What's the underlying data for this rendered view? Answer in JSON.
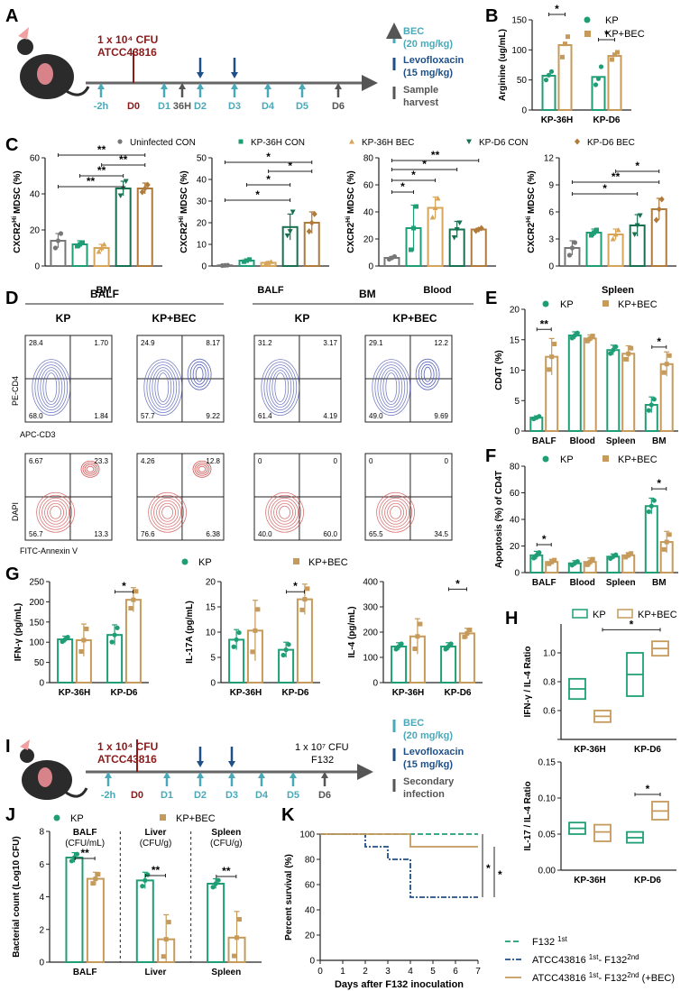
{
  "colors": {
    "kp": "#1f9e76",
    "bec": "#c59a5a",
    "con": "#777777",
    "kp36con": "#1f9e76",
    "kp36bec": "#d7a55a",
    "d6con": "#17704f",
    "d6bec": "#b07a3a",
    "arrowLight": "#4aa9b8",
    "arrowDark": "#1e4f87",
    "arrowGray": "#555555",
    "red": "#8b1a1a",
    "flowBlue": "#5560b8",
    "flowRed": "#d05050"
  },
  "panels": {
    "A": {
      "letter": "A",
      "cfu_line1": "1 x 10⁴ CFU",
      "cfu_line2": "ATCC43816",
      "timeline": [
        "-2h",
        "D0",
        "D1",
        "36H",
        "D2",
        "D3",
        "D4",
        "D5",
        "D6"
      ],
      "legend": {
        "bec": "BEC",
        "bec_dose": "(20 mg/kg)",
        "levo": "Levofloxacin",
        "levo_dose": "(15 mg/kg)",
        "sample": "Sample",
        "sample2": "harvest"
      }
    },
    "B": {
      "letter": "B",
      "legend_kp": "KP",
      "legend_bec": "KP+BEC",
      "sig": [
        "*",
        "*"
      ]
    },
    "C": {
      "letter": "C",
      "legend": [
        "Uninfected CON",
        "KP-36H CON",
        "KP-36H BEC",
        "KP-D6 CON",
        "KP-D6 BEC"
      ],
      "ylabel": "CXCR2Hi MDSC (%)",
      "ylabel_main": "CXCR2",
      "ylabel_sup": "Hi",
      "ylabel_tail": " MDSC (%)",
      "sig": "*",
      "sig2": "**"
    },
    "D": {
      "letter": "D",
      "balf": "BALF",
      "bm": "BM",
      "kp": "KP",
      "kpbec": "KP+BEC",
      "ylab_top": "PE-CD4",
      "xlab_top": "APC-CD3",
      "ylab_bot": "DAPI",
      "xlab_bot": "FITC-Annexin V",
      "quads_top": [
        [
          "28.4",
          "1.70",
          "68.0",
          "1.84"
        ],
        [
          "24.9",
          "8.17",
          "57.7",
          "9.22"
        ],
        [
          "31.2",
          "3.17",
          "61.4",
          "4.19"
        ],
        [
          "29.1",
          "12.2",
          "49.0",
          "9.69"
        ]
      ],
      "quads_bot": [
        [
          "6.67",
          "23.3",
          "56.7",
          "13.3"
        ],
        [
          "4.26",
          "12.8",
          "76.6",
          "6.38"
        ],
        [
          "0",
          "0",
          "40.0",
          "60.0"
        ],
        [
          "0",
          "0",
          "65.5",
          "34.5"
        ]
      ]
    },
    "E": {
      "letter": "E",
      "legend_kp": "KP",
      "legend_bec": "KP+BEC",
      "sig": [
        "**",
        "*"
      ]
    },
    "F": {
      "letter": "F",
      "legend_kp": "KP",
      "legend_bec": "KP+BEC",
      "sig": [
        "*",
        "*"
      ]
    },
    "G": {
      "letter": "G",
      "legend_kp": "KP",
      "legend_bec": "KP+BEC",
      "sig": "*"
    },
    "H": {
      "letter": "H",
      "legend_kp": "KP",
      "legend_bec": "KP+BEC",
      "sig": "*"
    },
    "I": {
      "letter": "I",
      "cfu_line1": "1 x 10⁴ CFU",
      "cfu_line2": "ATCC43816",
      "timeline": [
        "-2h",
        "D0",
        "D1",
        "D2",
        "D3",
        "D4",
        "D5",
        "D6"
      ],
      "second_cfu": "1 x 10⁷ CFU",
      "second_strain": "F132",
      "legend": {
        "bec": "BEC",
        "bec_dose": "(20 mg/kg)",
        "levo": "Levofloxacin",
        "levo_dose": "(15 mg/kg)",
        "sec": "Secondary",
        "sec2": "infection"
      }
    },
    "J": {
      "letter": "J",
      "legend_kp": "KP",
      "legend_bec": "KP+BEC",
      "sub": [
        [
          "BALF",
          "(CFU/mL)"
        ],
        [
          "Liver",
          "(CFU/g)"
        ],
        [
          "Spleen",
          "(CFU/g)"
        ]
      ],
      "sig": "**"
    },
    "K": {
      "letter": "K",
      "sig": "*",
      "legend": [
        {
          "name": "F132",
          "sup": "1st",
          "tail": ""
        },
        {
          "name": "ATCC43816",
          "sup": "1st",
          "tail": "- F132",
          "sup2": "2nd",
          "tail2": ""
        },
        {
          "name": "ATCC43816",
          "sup": "1st",
          "tail": "- F132",
          "sup2": "2nd",
          "tail2": " (+BEC)"
        }
      ]
    }
  },
  "chart_data": [
    {
      "id": "B",
      "type": "bar",
      "ylabel": "Arginine (ug/mL)",
      "categories": [
        "KP-36H",
        "KP-D6"
      ],
      "ylim": [
        0,
        150
      ],
      "yticks": [
        0,
        50,
        100,
        150
      ],
      "series": [
        {
          "name": "KP",
          "values": [
            57,
            55
          ],
          "points": [
            [
              50,
              58,
              64
            ],
            [
              42,
              52,
              72
            ]
          ]
        },
        {
          "name": "KP+BEC",
          "values": [
            108,
            90
          ],
          "points": [
            [
              88,
              110,
              122
            ],
            [
              84,
              92,
              96
            ]
          ]
        }
      ]
    },
    {
      "id": "C1",
      "type": "bar",
      "title": "BM",
      "ylabel": "CXCR2Hi MDSC (%)",
      "ylim": [
        0,
        60
      ],
      "yticks": [
        0,
        20,
        40,
        60
      ],
      "categories": [
        "Uninfected CON",
        "KP-36H CON",
        "KP-36H BEC",
        "KP-D6 CON",
        "KP-D6 BEC"
      ],
      "values": [
        14,
        12,
        10,
        43,
        43
      ],
      "errors": [
        4,
        2,
        2,
        4,
        3
      ],
      "points": [
        [
          10,
          14,
          18
        ],
        [
          11,
          12,
          13
        ],
        [
          8,
          10,
          12
        ],
        [
          39,
          43,
          47
        ],
        [
          41,
          43,
          45
        ]
      ]
    },
    {
      "id": "C2",
      "type": "bar",
      "title": "BALF",
      "ylabel": "CXCR2Hi MDSC (%)",
      "ylim": [
        0,
        50
      ],
      "yticks": [
        0,
        10,
        20,
        30,
        40,
        50
      ],
      "categories": [
        "Uninfected CON",
        "KP-36H CON",
        "KP-36H BEC",
        "KP-D6 CON",
        "KP-D6 BEC"
      ],
      "values": [
        0.3,
        2.5,
        1.5,
        18,
        20
      ],
      "errors": [
        0.2,
        0.8,
        0.6,
        6,
        5
      ],
      "points": [
        [
          0.2,
          0.3,
          0.4
        ],
        [
          2,
          2.5,
          3
        ],
        [
          1,
          1.5,
          2
        ],
        [
          14,
          16,
          25
        ],
        [
          16,
          20,
          24
        ]
      ]
    },
    {
      "id": "C3",
      "type": "bar",
      "title": "Blood",
      "ylabel": "CXCR2Hi MDSC (%)",
      "ylim": [
        0,
        80
      ],
      "yticks": [
        0,
        20,
        40,
        60,
        80
      ],
      "categories": [
        "Uninfected CON",
        "KP-36H CON",
        "KP-36H BEC",
        "KP-D6 CON",
        "KP-D6 BEC"
      ],
      "values": [
        6,
        28,
        43,
        27,
        27
      ],
      "errors": [
        1,
        17,
        8,
        6,
        1
      ],
      "points": [
        [
          5,
          6,
          7
        ],
        [
          12,
          28,
          44
        ],
        [
          36,
          43,
          50
        ],
        [
          21,
          27,
          32
        ],
        [
          26,
          27,
          28
        ]
      ]
    },
    {
      "id": "C4",
      "type": "bar",
      "title": "Spleen",
      "ylabel": "CXCR2Hi MDSC (%)",
      "ylim": [
        0,
        12
      ],
      "yticks": [
        0,
        3,
        6,
        9,
        12
      ],
      "categories": [
        "Uninfected CON",
        "KP-36H CON",
        "KP-36H BEC",
        "KP-D6 CON",
        "KP-D6 BEC"
      ],
      "values": [
        2,
        3.7,
        3.5,
        4.5,
        6.3
      ],
      "errors": [
        0.8,
        0.4,
        0.6,
        1.2,
        1.2
      ],
      "points": [
        [
          1.2,
          2,
          2.6
        ],
        [
          3.4,
          3.7,
          4
        ],
        [
          3,
          3.5,
          4
        ],
        [
          3.5,
          4.5,
          5.6
        ],
        [
          5.1,
          6.3,
          7.4
        ]
      ]
    },
    {
      "id": "E",
      "type": "bar",
      "ylabel": "CD4T (%)",
      "categories": [
        "BALF",
        "Blood",
        "Spleen",
        "BM"
      ],
      "ylim": [
        0,
        20
      ],
      "yticks": [
        0,
        5,
        10,
        15,
        20
      ],
      "series": [
        {
          "name": "KP",
          "values": [
            2.2,
            15.7,
            13.3,
            4.3
          ],
          "errors": [
            0.3,
            0.6,
            0.8,
            1.3
          ]
        },
        {
          "name": "KP+BEC",
          "values": [
            12.2,
            15.2,
            12.7,
            11
          ],
          "errors": [
            3,
            0.6,
            1.3,
            2
          ]
        }
      ]
    },
    {
      "id": "F",
      "type": "bar",
      "ylabel": "Apoptosis (%) of CD4T",
      "categories": [
        "BALF",
        "Blood",
        "Spleen",
        "BM"
      ],
      "ylim": [
        0,
        80
      ],
      "yticks": [
        0,
        20,
        40,
        60,
        80
      ],
      "series": [
        {
          "name": "KP",
          "values": [
            13,
            7,
            12,
            50
          ],
          "errors": [
            3,
            2,
            2,
            6
          ]
        },
        {
          "name": "KP+BEC",
          "values": [
            8,
            8,
            13,
            23
          ],
          "errors": [
            2,
            3,
            2,
            8
          ]
        }
      ]
    },
    {
      "id": "G1",
      "type": "bar",
      "ylabel": "IFN-γ (pg/mL)",
      "categories": [
        "KP-36H",
        "KP-D6"
      ],
      "ylim": [
        0,
        250
      ],
      "yticks": [
        0,
        50,
        100,
        150,
        200,
        250
      ],
      "series": [
        {
          "name": "KP",
          "values": [
            107,
            118
          ],
          "errors": [
            8,
            25
          ]
        },
        {
          "name": "KP+BEC",
          "values": [
            105,
            205
          ],
          "errors": [
            40,
            30
          ]
        }
      ]
    },
    {
      "id": "G2",
      "type": "bar",
      "ylabel": "IL-17A (pg/mL)",
      "categories": [
        "KP-36H",
        "KP-D6"
      ],
      "ylim": [
        0,
        20
      ],
      "yticks": [
        0,
        5,
        10,
        15,
        20
      ],
      "series": [
        {
          "name": "KP",
          "values": [
            8.5,
            6.5
          ],
          "errors": [
            2,
            1.5
          ]
        },
        {
          "name": "KP+BEC",
          "values": [
            10.3,
            16.5
          ],
          "errors": [
            6,
            3
          ]
        }
      ]
    },
    {
      "id": "G3",
      "type": "bar",
      "ylabel": "IL-4 (pg/mL)",
      "categories": [
        "KP-36H",
        "KP-D6"
      ],
      "ylim": [
        0,
        400
      ],
      "yticks": [
        0,
        100,
        200,
        300,
        400
      ],
      "series": [
        {
          "name": "KP",
          "values": [
            143,
            143
          ],
          "errors": [
            15,
            15
          ]
        },
        {
          "name": "KP+BEC",
          "values": [
            183,
            195
          ],
          "errors": [
            70,
            20
          ]
        }
      ]
    },
    {
      "id": "H1",
      "type": "box",
      "ylabel": "IFN-γ / IL-4 Ratio",
      "categories": [
        "KP-36H",
        "KP-D6"
      ],
      "ylim": [
        0.4,
        1.2
      ],
      "yticks": [
        0.4,
        0.6,
        0.8,
        1.0
      ],
      "ytick_labels": [
        "",
        "0.6",
        "0.8",
        "1.0"
      ],
      "series": [
        {
          "name": "KP",
          "boxes": [
            [
              0.68,
              0.75,
              0.82
            ],
            [
              0.7,
              0.85,
              1.0
            ]
          ]
        },
        {
          "name": "KP+BEC",
          "boxes": [
            [
              0.52,
              0.56,
              0.6
            ],
            [
              0.98,
              1.03,
              1.08
            ]
          ]
        }
      ]
    },
    {
      "id": "H2",
      "type": "box",
      "ylabel": "IL-17 / IL-4 Ratio",
      "categories": [
        "KP-36H",
        "KP-D6"
      ],
      "ylim": [
        0,
        0.15
      ],
      "yticks": [
        0,
        0.05,
        0.1,
        0.15
      ],
      "ytick_labels": [
        "0.00",
        "0.05",
        "0.10",
        "0.15"
      ],
      "series": [
        {
          "name": "KP",
          "boxes": [
            [
              0.05,
              0.058,
              0.066
            ],
            [
              0.038,
              0.045,
              0.053
            ]
          ]
        },
        {
          "name": "KP+BEC",
          "boxes": [
            [
              0.04,
              0.053,
              0.063
            ],
            [
              0.07,
              0.082,
              0.095
            ]
          ]
        }
      ]
    },
    {
      "id": "J",
      "type": "bar",
      "ylabel": "Bacterial count (Log10 CFU)",
      "categories": [
        "BALF",
        "Liver",
        "Spleen"
      ],
      "ylim": [
        0,
        8
      ],
      "yticks": [
        0,
        2,
        4,
        6,
        8
      ],
      "series": [
        {
          "name": "KP",
          "values": [
            6.4,
            5,
            4.8
          ],
          "errors": [
            0.3,
            0.5,
            0.3
          ]
        },
        {
          "name": "KP+BEC",
          "values": [
            5.1,
            1.4,
            1.5
          ],
          "errors": [
            0.4,
            1.5,
            1.6
          ]
        }
      ]
    },
    {
      "id": "K",
      "type": "line",
      "ylabel": "Percent survival (%)",
      "xlabel": "Days after F132 inoculation",
      "xlim": [
        0,
        7
      ],
      "ylim": [
        0,
        100
      ],
      "xticks": [
        0,
        1,
        2,
        3,
        4,
        5,
        6,
        7
      ],
      "yticks": [
        0,
        20,
        40,
        60,
        80,
        100
      ],
      "series": [
        {
          "name": "F132 1st",
          "x": [
            0,
            7
          ],
          "y": [
            100,
            100
          ]
        },
        {
          "name": "ATCC43816 1st- F132 2nd",
          "x": [
            0,
            2,
            2,
            3,
            3,
            4,
            4,
            7
          ],
          "y": [
            100,
            100,
            90,
            90,
            80,
            80,
            50,
            50
          ]
        },
        {
          "name": "ATCC43816 1st- F132 2nd (+BEC)",
          "x": [
            0,
            4,
            4,
            7
          ],
          "y": [
            100,
            100,
            90,
            90
          ]
        }
      ]
    }
  ]
}
